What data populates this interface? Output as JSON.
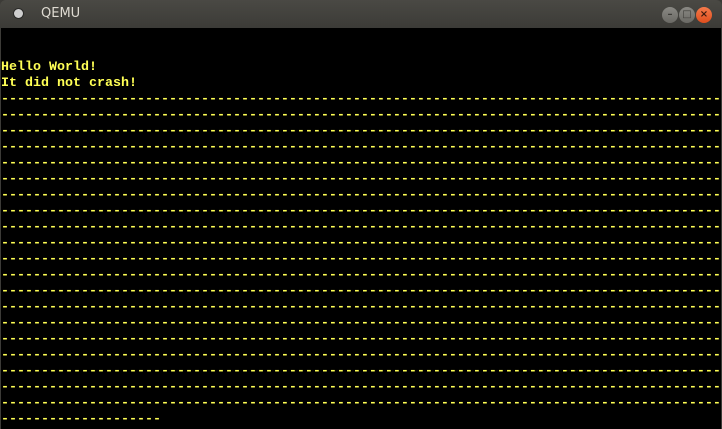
{
  "window": {
    "title": "QEMU",
    "app_icon": "qemu-icon",
    "controls": [
      "minimize",
      "maximize",
      "close"
    ]
  },
  "colors": {
    "text": "#ffff55",
    "background": "#000000",
    "close_button": "#e9582a"
  },
  "screen": {
    "lines": [
      "",
      "",
      "Hello World!",
      "It did not crash!",
      "------------------------------------------------------------------------------------------",
      "------------------------------------------------------------------------------------------",
      "------------------------------------------------------------------------------------------",
      "------------------------------------------------------------------------------------------",
      "------------------------------------------------------------------------------------------",
      "------------------------------------------------------------------------------------------",
      "------------------------------------------------------------------------------------------",
      "------------------------------------------------------------------------------------------",
      "------------------------------------------------------------------------------------------",
      "------------------------------------------------------------------------------------------",
      "------------------------------------------------------------------------------------------",
      "------------------------------------------------------------------------------------------",
      "------------------------------------------------------------------------------------------",
      "------------------------------------------------------------------------------------------",
      "------------------------------------------------------------------------------------------",
      "------------------------------------------------------------------------------------------",
      "------------------------------------------------------------------------------------------",
      "------------------------------------------------------------------------------------------",
      "------------------------------------------------------------------------------------------",
      "------------------------------------------------------------------------------------------",
      "--------------------"
    ]
  }
}
